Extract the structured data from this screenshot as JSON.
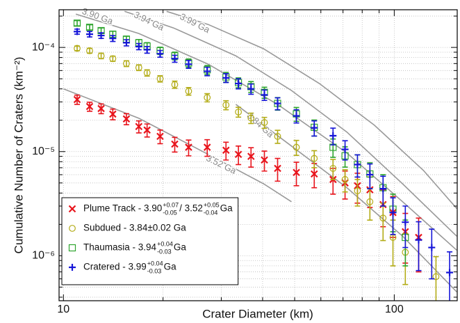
{
  "chart_data": {
    "type": "scatter",
    "xlabel": "Crater Diameter (km)",
    "ylabel": "Cumulative Number of Craters (km⁻²)",
    "xscale": "log",
    "yscale": "log",
    "grid": true,
    "legend": "lower left",
    "xlim": [
      9.7,
      155
    ],
    "ylim": [
      3.7e-07,
      0.00023
    ],
    "xticks": [
      10,
      100
    ],
    "xminorticks": [
      20,
      30,
      40,
      50,
      60,
      70,
      80,
      90
    ],
    "yticks": [
      {
        "value": 1e-06,
        "label": "10⁻⁶"
      },
      {
        "value": 1e-05,
        "label": "10⁻⁵"
      },
      {
        "value": 0.0001,
        "label": "10⁻⁴"
      }
    ],
    "yminorticks": [
      4e-07,
      5e-07,
      6e-07,
      7e-07,
      8e-07,
      9e-07,
      2e-06,
      3e-06,
      4e-06,
      5e-06,
      6e-06,
      7e-06,
      8e-06,
      9e-06,
      2e-05,
      3e-05,
      4e-05,
      5e-05,
      6e-05,
      7e-05,
      8e-05,
      9e-05,
      0.0002
    ],
    "series": [
      {
        "name": [
          "Plume Track - 3.90",
          {
            "sup": "+0.07",
            "sub": "-0.05"
          },
          " / 3.52",
          {
            "sup": "+0.05",
            "sub": "-0.04"
          },
          " Ga"
        ],
        "marker": "x",
        "color": "#e8141c",
        "x": [
          11,
          12,
          13,
          14.1,
          15.5,
          16.9,
          17.9,
          19.6,
          21.7,
          23.9,
          27.2,
          31,
          33.8,
          36.9,
          40.5,
          44.4,
          50.6,
          57.3,
          65.3,
          71,
          77.4,
          84.4,
          92.5,
          99.1,
          108,
          118.5
        ],
        "values": [
          3.16e-05,
          2.71e-05,
          2.59e-05,
          2.29e-05,
          2.06e-05,
          1.74e-05,
          1.61e-05,
          1.4e-05,
          1.18e-05,
          1.1e-05,
          1.1e-05,
          1.03e-05,
          9.4e-06,
          9e-06,
          8.3e-06,
          6.9e-06,
          6.3e-06,
          6.1e-06,
          5.4e-06,
          5e-06,
          4.7e-06,
          4.3e-06,
          3.1e-06,
          2.6e-06,
          1.7e-06,
          1.5e-06
        ],
        "errors": [
          3.2e-06,
          2.7e-06,
          2.8e-06,
          2.7e-06,
          2.5e-06,
          2.3e-06,
          2.3e-06,
          2.1e-06,
          1.9e-06,
          1.9e-06,
          2e-06,
          2e-06,
          1.9e-06,
          1.9e-06,
          1.8e-06,
          1.7e-06,
          1.6e-06,
          1.6e-06,
          1.5e-06,
          1.5e-06,
          1.5e-06,
          1.4e-06,
          1.2e-06,
          1.1e-06,
          8.5e-07,
          8e-07
        ]
      },
      {
        "name": [
          "Subdued - 3.84±0.02 Ga"
        ],
        "marker": "circle",
        "color": "#b3ac17",
        "x": [
          11,
          12,
          13,
          14.1,
          15.5,
          16.9,
          17.9,
          19.6,
          21.7,
          23.9,
          27.2,
          31,
          33.8,
          36.9,
          40.5,
          44.4,
          50.6,
          57.3,
          65.3,
          71,
          77.4,
          84.4,
          92.5,
          99.1,
          108,
          133.7
        ],
        "values": [
          9.8e-05,
          9.3e-05,
          8.3e-05,
          7.8e-05,
          7e-05,
          6.4e-05,
          5.7e-05,
          5e-05,
          4.4e-05,
          3.8e-05,
          3.3e-05,
          2.8e-05,
          2.4e-05,
          2.1e-05,
          1.9e-05,
          1.4e-05,
          1.1e-05,
          8.6e-06,
          6.9e-06,
          5.4e-06,
          4.2e-06,
          3.3e-06,
          2.3e-06,
          1.5e-06,
          1.08e-06,
          6.3e-07
        ],
        "errors": [
          5e-06,
          5e-06,
          5e-06,
          4.5e-06,
          4.5e-06,
          4e-06,
          4e-06,
          3.5e-06,
          3.5e-06,
          3.2e-06,
          3e-06,
          2.8e-06,
          2.6e-06,
          2.4e-06,
          2.3e-06,
          2e-06,
          1.8e-06,
          1.6e-06,
          1.5e-06,
          1.3e-06,
          1.2e-06,
          1.1e-06,
          9e-07,
          7e-07,
          5.5e-07,
          3.5e-07
        ]
      },
      {
        "name": [
          "Thaumasia - 3.94",
          {
            "sup": "+0.04",
            "sub": "-0.03"
          },
          " Ga"
        ],
        "marker": "square",
        "color": "#2fa52f",
        "x": [
          11,
          12,
          13,
          14.1,
          15.5,
          16.9,
          17.9,
          19.6,
          21.7,
          23.9,
          27.2,
          31,
          33.8,
          36.9,
          40.5,
          44.4,
          50.6,
          57.3,
          65.3,
          71,
          77.4,
          84.4,
          92.5,
          99.1,
          108
        ],
        "values": [
          0.000171,
          0.000156,
          0.000145,
          0.000134,
          0.00012,
          0.000111,
          0.000103,
          9.3e-05,
          8.3e-05,
          7.1e-05,
          6.1e-05,
          5.2e-05,
          4.6e-05,
          4.2e-05,
          3.7e-05,
          2.9e-05,
          2.3e-05,
          1.71e-05,
          1.1e-05,
          9.1e-06,
          7.5e-06,
          6.1e-06,
          4.5e-06,
          2.8e-06,
          1.5e-06
        ],
        "errors": [
          1e-05,
          9e-06,
          9e-06,
          9e-06,
          8e-06,
          8e-06,
          8e-06,
          7.5e-06,
          7e-06,
          6.5e-06,
          6e-06,
          5.5e-06,
          5e-06,
          5e-06,
          4.5e-06,
          4e-06,
          3.5e-06,
          3e-06,
          2.2e-06,
          2e-06,
          1.8e-06,
          1.7e-06,
          1.5e-06,
          1.1e-06,
          7e-07
        ]
      },
      {
        "name": [
          "Cratered - 3.99",
          {
            "sup": "+0.04",
            "sub": "-0.03"
          },
          " Ga"
        ],
        "marker": "plus",
        "color": "#1616d8",
        "x": [
          11,
          12,
          13,
          14.1,
          15.5,
          16.9,
          17.9,
          19.6,
          21.7,
          23.9,
          27.2,
          31,
          33.8,
          36.9,
          40.5,
          44.4,
          50.6,
          57.3,
          65.3,
          71,
          77.4,
          84.4,
          92.5,
          99.1,
          108,
          118.5,
          129.8,
          147
        ],
        "values": [
          0.000142,
          0.000134,
          0.00013,
          0.000122,
          0.000111,
          0.000102,
          9.5e-05,
          8.7e-05,
          7.8e-05,
          6.9e-05,
          5.9e-05,
          5.1e-05,
          4.5e-05,
          4e-05,
          3.5e-05,
          2.9e-05,
          2.2e-05,
          1.69e-05,
          1.42e-05,
          1.05e-05,
          7.5e-06,
          6e-06,
          4.4e-06,
          2.6e-06,
          2.1e-06,
          1.42e-06,
          1.2e-06,
          6.9e-07
        ],
        "errors": [
          8e-06,
          8e-06,
          8e-06,
          8e-06,
          7.5e-06,
          7e-06,
          7e-06,
          6.5e-06,
          6e-06,
          6e-06,
          5.5e-06,
          5e-06,
          5e-06,
          4.5e-06,
          4e-06,
          3.8e-06,
          3.2e-06,
          2.8e-06,
          2.6e-06,
          2.2e-06,
          1.8e-06,
          1.6e-06,
          1.4e-06,
          1e-06,
          9e-07,
          7e-07,
          6e-07,
          4e-07
        ]
      }
    ],
    "isochrons": [
      {
        "label": "3.90 Ga",
        "x": [
          10.9,
          16.9,
          27.4,
          44.4,
          71.9,
          106,
          154.5
        ],
        "y": [
          0.000209,
          0.000136,
          6.9e-05,
          2.84e-05,
          9.7e-06,
          3.3e-06,
          1.13e-06
        ]
      },
      {
        "label": "3.94 Ga",
        "x": [
          15.3,
          21.5,
          33.2,
          48.9,
          71.9,
          106,
          154.5
        ],
        "y": [
          0.000222,
          0.000154,
          8.3e-05,
          3.86e-05,
          1.54e-05,
          4.9e-06,
          1.54e-06
        ]
      },
      {
        "label": "3.99 Ga",
        "x": [
          20.5,
          27.4,
          40.3,
          59.4,
          87.1,
          122.5,
          154.5
        ],
        "y": [
          0.000222,
          0.000166,
          9.7e-05,
          4.5e-05,
          1.79e-05,
          6.6e-06,
          2.84e-06
        ]
      },
      {
        "label": "3.84 Ga",
        "x": [
          33.2,
          48.9,
          71.9,
          106,
          154.5
        ],
        "y": [
          2.84e-05,
          1.13e-05,
          4.5e-06,
          1.54e-06,
          4.5e-07
        ]
      },
      {
        "label": "3.52 Ga",
        "x": [
          10,
          16.9,
          27.4,
          40.3,
          48.9
        ],
        "y": [
          4e-05,
          2.09e-05,
          9.4e-06,
          4.9e-06,
          3.3e-06
        ]
      }
    ]
  }
}
